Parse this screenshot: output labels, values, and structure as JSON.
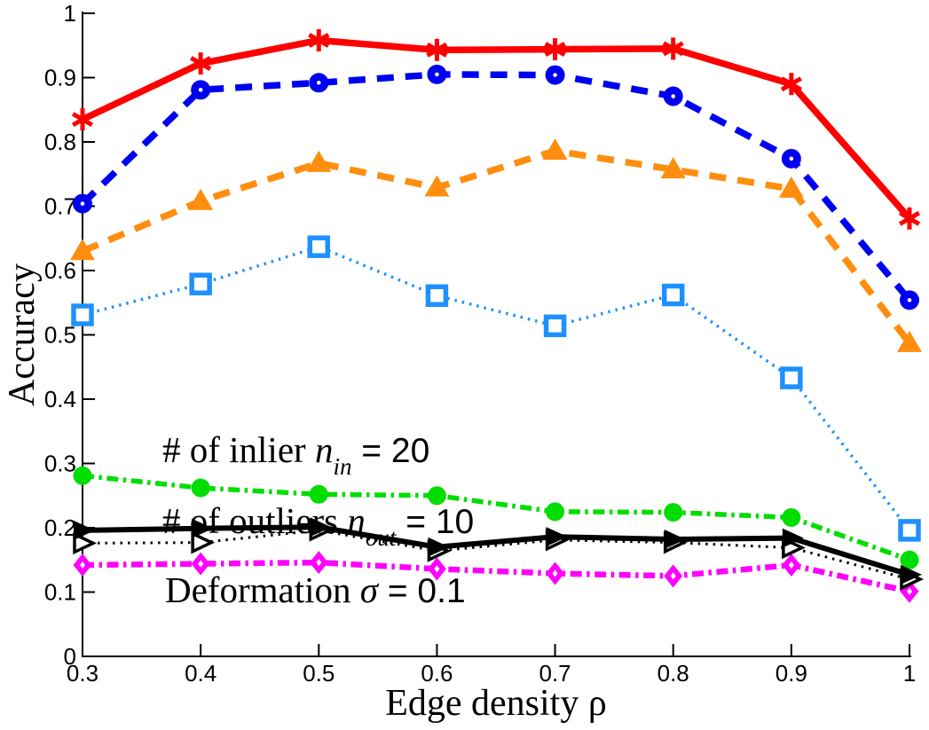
{
  "chart_data": {
    "type": "line",
    "title": "",
    "xlabel": "Edge density ρ",
    "ylabel": "Accuracy",
    "xlim": [
      0.3,
      1.0
    ],
    "ylim": [
      0,
      1
    ],
    "xticks": [
      "0.3",
      "0.4",
      "0.5",
      "0.6",
      "0.7",
      "0.8",
      "0.9",
      "1"
    ],
    "yticks": [
      "0",
      "0.1",
      "0.2",
      "0.3",
      "0.4",
      "0.5",
      "0.6",
      "0.7",
      "0.8",
      "0.9",
      "1"
    ],
    "grid": false,
    "legend": "none",
    "x": [
      0.3,
      0.4,
      0.5,
      0.6,
      0.7,
      0.8,
      0.9,
      1.0
    ],
    "series": [
      {
        "name": "lightblue-dotted-square",
        "color": "#1E90FF",
        "style": "dotted",
        "marker": "square",
        "width": 3.5,
        "values": [
          0.531,
          0.579,
          0.637,
          0.561,
          0.514,
          0.562,
          0.433,
          0.196
        ]
      },
      {
        "name": "green-dashdot-filled-circle",
        "color": "#00DD00",
        "style": "dashdot",
        "marker": "circle-filled",
        "width": 5.5,
        "values": [
          0.281,
          0.262,
          0.252,
          0.25,
          0.225,
          0.224,
          0.216,
          0.15
        ]
      },
      {
        "name": "magenta-dashdot-diamond",
        "color": "#FF00FF",
        "style": "dashdot",
        "marker": "diamond",
        "width": 6.5,
        "values": [
          0.142,
          0.144,
          0.146,
          0.136,
          0.129,
          0.125,
          0.142,
          0.101
        ]
      },
      {
        "name": "black-dotted-open-triangle",
        "color": "#000000",
        "style": "dotted",
        "marker": "triangle-right-open",
        "width": 3,
        "values": [
          0.176,
          0.177,
          0.196,
          0.164,
          0.181,
          0.177,
          0.169,
          0.12
        ]
      },
      {
        "name": "black-solid-filled-triangle",
        "color": "#000000",
        "style": "solid",
        "marker": "triangle-right",
        "width": 6,
        "values": [
          0.196,
          0.199,
          0.201,
          0.17,
          0.186,
          0.182,
          0.184,
          0.127
        ]
      },
      {
        "name": "orange-dashed-triangle",
        "color": "#FF8E0E",
        "style": "dashed",
        "marker": "triangle-up",
        "width": 7.5,
        "values": [
          0.63,
          0.708,
          0.767,
          0.729,
          0.786,
          0.757,
          0.727,
          0.487
        ]
      },
      {
        "name": "blue-dashed-circle",
        "color": "#0000F0",
        "style": "dashed",
        "marker": "circle",
        "width": 7.5,
        "values": [
          0.704,
          0.881,
          0.892,
          0.905,
          0.904,
          0.871,
          0.774,
          0.554
        ]
      },
      {
        "name": "red-solid-asterisk",
        "color": "#FF0000",
        "style": "solid",
        "marker": "asterisk",
        "width": 7.5,
        "values": [
          0.835,
          0.922,
          0.958,
          0.943,
          0.944,
          0.945,
          0.89,
          0.681
        ]
      }
    ],
    "annotations": [
      {
        "prefix": "# of inlier ",
        "var": "n",
        "sub": "in",
        "eq": " = 20"
      },
      {
        "prefix": "# of outliers ",
        "var": "n",
        "sub": "out",
        "eq": " = 10"
      },
      {
        "prefix": "Deformation ",
        "var": "σ",
        "sub": "",
        "eq": " = 0.1"
      }
    ],
    "axis_color": "#000000",
    "background_color": "#FFFFFF"
  }
}
